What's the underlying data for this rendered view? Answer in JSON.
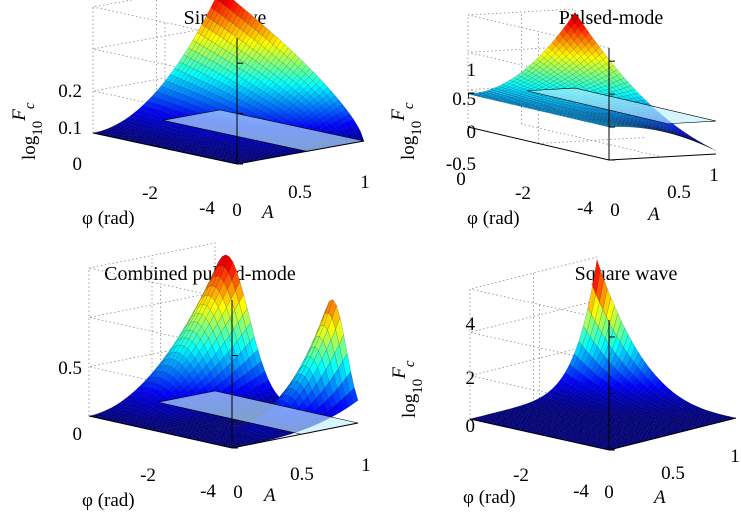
{
  "figure": {
    "colormap": [
      "#00008f",
      "#0000ff",
      "#007fff",
      "#00ffff",
      "#7fff7f",
      "#ffff00",
      "#ff7f00",
      "#ff0000",
      "#7f0000"
    ],
    "floor_plane_color": "#bfefff"
  },
  "chart_data": [
    {
      "type": "surface",
      "title": "Sine wave",
      "xlabel": "A",
      "ylabel": "φ (rad)",
      "zlabel_main": "log",
      "zlabel_sub": "10",
      "zlabel_var": "F",
      "zlabel_var_sub": "c",
      "x_ticks": [
        "0",
        "0.5",
        "1"
      ],
      "y_ticks": [
        "-4",
        "-2",
        "0"
      ],
      "z_ticks": [
        "0",
        "0.1",
        "0.2"
      ],
      "xlim": [
        0,
        1
      ],
      "ylim": [
        -4,
        0
      ],
      "zlim": [
        0,
        0.25
      ],
      "zero_plane": true,
      "z_peak": 0.24
    },
    {
      "type": "surface",
      "title": "Pulsed-mode",
      "xlabel": "A",
      "ylabel": "φ (rad)",
      "zlabel_main": "log",
      "zlabel_sub": "10",
      "zlabel_var": "F",
      "zlabel_var_sub": "c",
      "x_ticks": [
        "0",
        "0.5",
        "1"
      ],
      "y_ticks": [
        "-4",
        "-2",
        "0"
      ],
      "z_ticks": [
        "-0.5",
        "0",
        "0.5",
        "1"
      ],
      "xlim": [
        0,
        1
      ],
      "ylim": [
        -4,
        0
      ],
      "zlim": [
        -0.5,
        1.2
      ],
      "zero_plane": true,
      "z_peak": 1.15,
      "z_trough": -0.5
    },
    {
      "type": "surface",
      "title": "Combined pulsed-mode",
      "xlabel": "A",
      "ylabel": "φ (rad)",
      "zlabel_main": "",
      "zlabel_sub": "",
      "zlabel_var": "",
      "zlabel_var_sub": "",
      "x_ticks": [
        "0",
        "0.5",
        "1"
      ],
      "y_ticks": [
        "-4",
        "-2",
        "0"
      ],
      "z_ticks": [
        "0",
        "0.5"
      ],
      "xlim": [
        0,
        1
      ],
      "ylim": [
        -4,
        0
      ],
      "zlim": [
        0,
        0.8
      ],
      "zero_plane": true,
      "z_peak": 0.75
    },
    {
      "type": "surface",
      "title": "Square wave",
      "xlabel": "A",
      "ylabel": "φ (rad)",
      "zlabel_main": "log",
      "zlabel_sub": "10",
      "zlabel_var": "F",
      "zlabel_var_sub": "c",
      "x_ticks": [
        "0",
        "0.5",
        "1"
      ],
      "y_ticks": [
        "-4",
        "-2",
        "0"
      ],
      "z_ticks": [
        "0",
        "2",
        "4"
      ],
      "xlim": [
        0,
        1
      ],
      "ylim": [
        -4,
        0
      ],
      "zlim": [
        0,
        4.6
      ],
      "zero_plane": false,
      "z_peak": 4.5
    }
  ]
}
